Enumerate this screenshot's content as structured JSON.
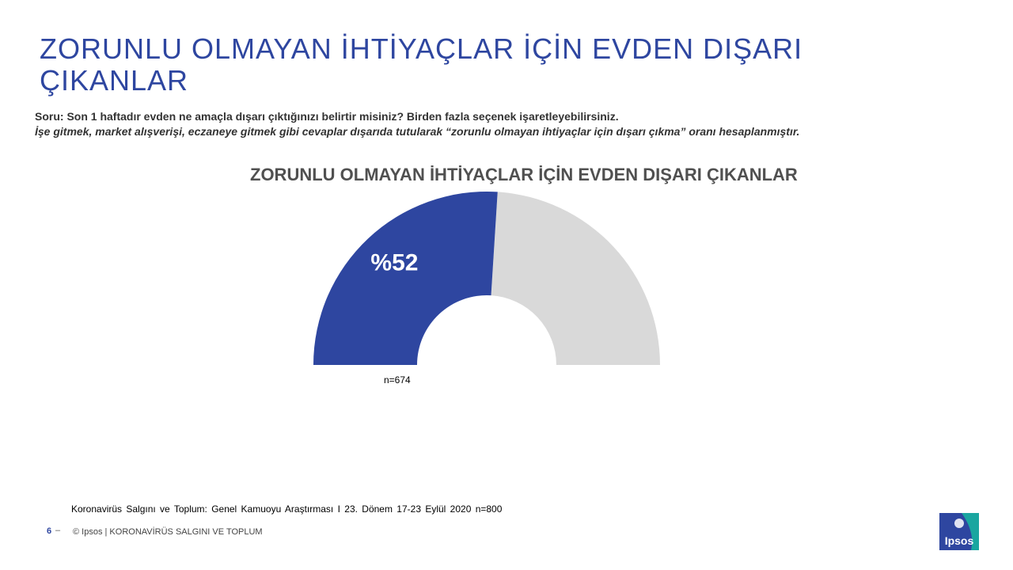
{
  "header": {
    "title": "ZORUNLU OLMAYAN İHTİYAÇLAR İÇİN EVDEN DIŞARI ÇIKANLAR",
    "question_line1": "Soru: Son 1 haftadır evden ne amaçla dışarı çıktığınızı belirtir misiniz? Birden fazla seçenek işaretleyebilirsiniz.",
    "question_line2": "İşe gitmek, market alışverişi, eczaneye gitmek gibi cevaplar dışarıda tutularak “zorunlu olmayan ihtiyaçlar için dışarı çıkma” oranı hesaplanmıştır."
  },
  "chart_data": {
    "type": "pie",
    "variant": "half-donut gauge",
    "title": "ZORUNLU OLMAYAN İHTİYAÇLAR İÇİN EVDEN DIŞARI ÇIKANLAR",
    "value": 52,
    "max": 100,
    "value_label": "%52",
    "sample_label": "n=674",
    "colors": {
      "filled": "#2e46a0",
      "remainder": "#d9d9d9"
    }
  },
  "footer": {
    "source": "Koronavirüs Salgını ve Toplum: Genel Kamuoyu Araştırması I 23. Dönem 17-23 Eylül 2020   n=800",
    "page_number": "6",
    "page_dash": "–",
    "copyright": "© Ipsos | KORONAVİRÜS SALGINI VE TOPLUM",
    "logo_text": "Ipsos"
  }
}
